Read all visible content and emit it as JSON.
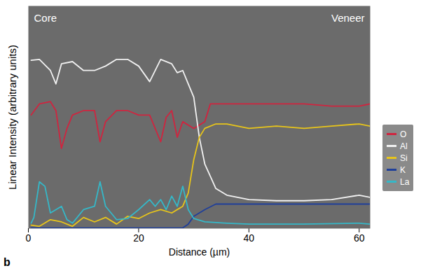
{
  "chart_data": {
    "type": "line",
    "xlabel": "Distance (µm)",
    "ylabel": "Linear Intensity (arbitrary units)",
    "xlim": [
      0,
      62
    ],
    "xticks": [
      0,
      20,
      40,
      60
    ],
    "ylim": [
      0,
      100
    ],
    "yticks": [],
    "tick_labels": "x",
    "legend": "right",
    "annotations": [
      "Core",
      "Veneer"
    ],
    "panel_label": "b",
    "series": [
      {
        "name": "O",
        "color": "#d0243f",
        "x": [
          0.5,
          2,
          4,
          5,
          6,
          7,
          8,
          10,
          12,
          13,
          14,
          16,
          18,
          20,
          22,
          24,
          25,
          26,
          27,
          28,
          30,
          32,
          33,
          36,
          40,
          45,
          50,
          55,
          60,
          62
        ],
        "values": [
          51,
          56,
          57,
          53,
          36,
          45,
          51,
          53,
          53,
          39,
          48,
          53,
          53,
          51,
          51,
          39,
          50,
          53,
          41,
          48,
          45,
          48,
          56,
          56,
          56,
          56,
          56,
          55,
          55,
          56
        ]
      },
      {
        "name": "Al",
        "color": "#f2f2f2",
        "x": [
          0.5,
          2,
          4,
          5,
          6,
          8,
          10,
          12,
          14,
          16,
          18,
          20,
          22,
          24,
          26,
          27,
          28,
          29,
          30,
          31,
          32,
          34,
          36,
          40,
          45,
          50,
          55,
          60,
          62
        ],
        "values": [
          75.6,
          76,
          71,
          65,
          74,
          75,
          71,
          71,
          73,
          76,
          76,
          73,
          66,
          76,
          74,
          70,
          71,
          65,
          59,
          41,
          29,
          18,
          15,
          13,
          12.5,
          12.5,
          13,
          15,
          14
        ]
      },
      {
        "name": "Si",
        "color": "#e8c51a",
        "x": [
          0.5,
          2,
          4,
          6,
          8,
          10,
          12,
          14,
          16,
          18,
          20,
          22,
          24,
          26,
          28,
          29,
          30,
          31,
          32,
          34,
          36,
          40,
          45,
          50,
          55,
          60,
          62
        ],
        "values": [
          1.5,
          1,
          4,
          3,
          1,
          5,
          3,
          5,
          2,
          5.5,
          4.5,
          7,
          8.5,
          7,
          10,
          16,
          31,
          41,
          45,
          47,
          47,
          45,
          46,
          45,
          46,
          47,
          46
        ]
      },
      {
        "name": "K",
        "color": "#1f3f9a",
        "x": [
          0.5,
          10,
          20,
          28,
          29,
          30,
          32,
          34,
          40,
          50,
          60,
          62
        ],
        "values": [
          0.3,
          0.3,
          0.3,
          0.3,
          2,
          5.5,
          8.5,
          11,
          11,
          11,
          11,
          11
        ]
      },
      {
        "name": "La",
        "color": "#35b8c8",
        "x": [
          0.5,
          1,
          2,
          3,
          4,
          6,
          7,
          8,
          10,
          12,
          13,
          14,
          16,
          18,
          20,
          22,
          23,
          24,
          25,
          26,
          27,
          28,
          29,
          30,
          32,
          36,
          40,
          50,
          60,
          62
        ],
        "values": [
          2.4,
          5,
          21,
          19,
          7,
          10,
          4,
          2.4,
          8.5,
          10,
          21,
          10,
          4,
          4.5,
          8.5,
          13,
          10,
          13,
          8.5,
          14.6,
          10,
          19,
          8.5,
          4.5,
          3,
          2.4,
          2,
          2,
          2.4,
          2
        ]
      }
    ]
  }
}
